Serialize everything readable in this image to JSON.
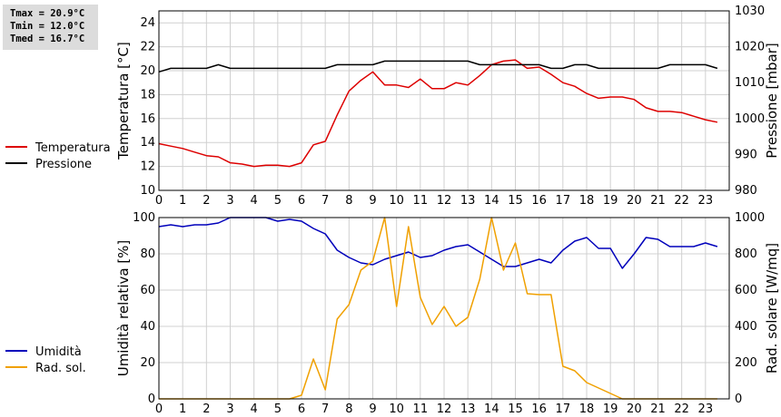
{
  "stats": {
    "tmax": "Tmax = 20.9°C",
    "tmin": "Tmin = 12.0°C",
    "tmed": "Tmed = 16.7°C"
  },
  "chart_data": [
    {
      "type": "line",
      "x_ticks": [
        0,
        1,
        2,
        3,
        4,
        5,
        6,
        7,
        8,
        9,
        10,
        11,
        12,
        13,
        14,
        15,
        16,
        17,
        18,
        19,
        20,
        21,
        22,
        23
      ],
      "xlim": [
        0,
        24
      ],
      "ylabel": "Temperatura [°C]",
      "y2label": "Pressione [mbar]",
      "ylim": [
        10,
        25
      ],
      "y_ticks": [
        10,
        12,
        14,
        16,
        18,
        20,
        22,
        24
      ],
      "y2lim": [
        980,
        1030
      ],
      "y2_ticks": [
        980,
        990,
        1000,
        1010,
        1020,
        1030
      ],
      "grid": true,
      "legend": "left",
      "series": [
        {
          "name": "Temperatura",
          "color": "#dd0000",
          "axis": "left",
          "x": [
            0,
            0.5,
            1,
            1.5,
            2,
            2.5,
            3,
            3.5,
            4,
            4.5,
            5,
            5.5,
            6,
            6.5,
            7,
            7.5,
            8,
            8.5,
            9,
            9.5,
            10,
            10.5,
            11,
            11.5,
            12,
            12.5,
            13,
            13.5,
            14,
            14.5,
            15,
            15.5,
            16,
            16.5,
            17,
            17.5,
            18,
            18.5,
            19,
            19.5,
            20,
            20.5,
            21,
            21.5,
            22,
            22.5,
            23,
            23.5
          ],
          "values": [
            13.9,
            13.7,
            13.5,
            13.2,
            12.9,
            12.8,
            12.3,
            12.2,
            12.0,
            12.1,
            12.1,
            12.0,
            12.3,
            13.8,
            14.1,
            16.3,
            18.3,
            19.2,
            19.9,
            18.8,
            18.8,
            18.6,
            19.3,
            18.5,
            18.5,
            19.0,
            18.8,
            19.6,
            20.5,
            20.8,
            20.9,
            20.2,
            20.3,
            19.7,
            19.0,
            18.7,
            18.1,
            17.7,
            17.8,
            17.8,
            17.6,
            16.9,
            16.6,
            16.6,
            16.5,
            16.2,
            15.9,
            15.7
          ]
        },
        {
          "name": "Pressione",
          "color": "#000000",
          "axis": "right",
          "x": [
            0,
            0.5,
            1,
            1.5,
            2,
            2.5,
            3,
            3.5,
            4,
            4.5,
            5,
            5.5,
            6,
            6.5,
            7,
            7.5,
            8,
            8.5,
            9,
            9.5,
            10,
            10.5,
            11,
            11.5,
            12,
            12.5,
            13,
            13.5,
            14,
            14.5,
            15,
            15.5,
            16,
            16.5,
            17,
            17.5,
            18,
            18.5,
            19,
            19.5,
            20,
            20.5,
            21,
            21.5,
            22,
            22.5,
            23,
            23.5
          ],
          "values": [
            1013,
            1014,
            1014,
            1014,
            1014,
            1015,
            1014,
            1014,
            1014,
            1014,
            1014,
            1014,
            1014,
            1014,
            1014,
            1015,
            1015,
            1015,
            1015,
            1016,
            1016,
            1016,
            1016,
            1016,
            1016,
            1016,
            1016,
            1015,
            1015,
            1015,
            1015,
            1015,
            1015,
            1014,
            1014,
            1015,
            1015,
            1014,
            1014,
            1014,
            1014,
            1014,
            1014,
            1015,
            1015,
            1015,
            1015,
            1014
          ]
        }
      ]
    },
    {
      "type": "line",
      "x_ticks": [
        0,
        1,
        2,
        3,
        4,
        5,
        6,
        7,
        8,
        9,
        10,
        11,
        12,
        13,
        14,
        15,
        16,
        17,
        18,
        19,
        20,
        21,
        22,
        23
      ],
      "xlim": [
        0,
        24
      ],
      "ylabel": "Umidità relativa [%]",
      "y2label": "Rad. solare [W/mq]",
      "ylim": [
        0,
        100
      ],
      "y_ticks": [
        0,
        20,
        40,
        60,
        80,
        100
      ],
      "y2lim": [
        0,
        1000
      ],
      "y2_ticks": [
        0,
        200,
        400,
        600,
        800,
        1000
      ],
      "grid": true,
      "legend": "left",
      "series": [
        {
          "name": "Umidità",
          "color": "#0000bb",
          "axis": "left",
          "x": [
            0,
            0.5,
            1,
            1.5,
            2,
            2.5,
            3,
            3.5,
            4,
            4.5,
            5,
            5.5,
            6,
            6.5,
            7,
            7.5,
            8,
            8.5,
            9,
            9.5,
            10,
            10.5,
            11,
            11.5,
            12,
            12.5,
            13,
            13.5,
            14,
            14.5,
            15,
            15.5,
            16,
            16.5,
            17,
            17.5,
            18,
            18.5,
            19,
            19.5,
            20,
            20.5,
            21,
            21.5,
            22,
            22.5,
            23,
            23.5
          ],
          "values": [
            95,
            96,
            95,
            96,
            96,
            97,
            100,
            100,
            100,
            100,
            98,
            99,
            98,
            94,
            91,
            82,
            78,
            75,
            74,
            77,
            79,
            81,
            78,
            79,
            82,
            84,
            85,
            81,
            77,
            73,
            73,
            75,
            77,
            75,
            82,
            87,
            89,
            83,
            83,
            72,
            80,
            89,
            88,
            84,
            84,
            84,
            86,
            84
          ]
        },
        {
          "name": "Rad. sol.",
          "color": "#f0a000",
          "axis": "right",
          "x": [
            0,
            0.5,
            1,
            1.5,
            2,
            2.5,
            3,
            3.5,
            4,
            4.5,
            5,
            5.5,
            6,
            6.5,
            7,
            7.5,
            8,
            8.5,
            9,
            9.5,
            10,
            10.5,
            11,
            11.5,
            12,
            12.5,
            13,
            13.5,
            14,
            14.5,
            15,
            15.5,
            16,
            16.5,
            17,
            17.5,
            18,
            18.5,
            19,
            19.5,
            20,
            20.5,
            21,
            21.5,
            22,
            22.5,
            23,
            23.5
          ],
          "values": [
            0,
            0,
            0,
            0,
            0,
            0,
            0,
            0,
            0,
            0,
            0,
            0,
            20,
            220,
            50,
            440,
            520,
            710,
            760,
            1000,
            510,
            950,
            560,
            410,
            510,
            400,
            450,
            660,
            1000,
            710,
            860,
            580,
            575,
            575,
            180,
            155,
            90,
            60,
            30,
            0,
            0,
            0,
            0,
            0,
            0,
            0,
            0,
            0
          ]
        }
      ]
    }
  ]
}
